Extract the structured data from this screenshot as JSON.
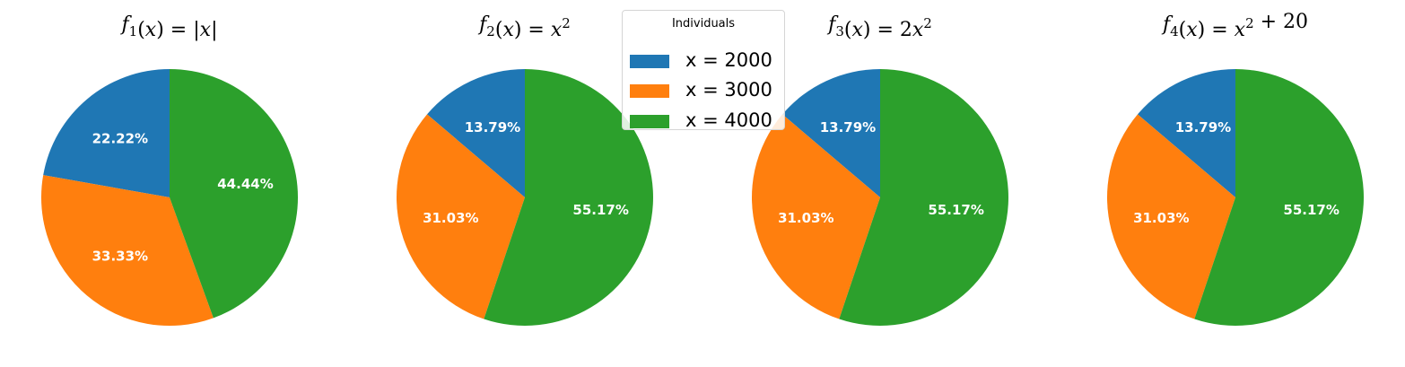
{
  "chart_data": [
    {
      "type": "pie",
      "title_parts": [
        [
          "f",
          "i"
        ],
        [
          "1",
          "sub"
        ],
        [
          "(",
          "n"
        ],
        [
          "x",
          "i"
        ],
        [
          ") = |",
          "n"
        ],
        [
          "x",
          "i"
        ],
        [
          "|",
          "n"
        ]
      ],
      "slices": [
        {
          "label": "x = 2000",
          "value": 22.22,
          "label_text": "22.22%",
          "color": "#1f77b4"
        },
        {
          "label": "x = 3000",
          "value": 33.33,
          "label_text": "33.33%",
          "color": "#ff7f0e"
        },
        {
          "label": "x = 4000",
          "value": 44.44,
          "label_text": "44.44%",
          "color": "#2ca02c"
        }
      ],
      "start_angle_deg": 90,
      "direction": "counterclockwise"
    },
    {
      "type": "pie",
      "title_parts": [
        [
          "f",
          "i"
        ],
        [
          "2",
          "sub"
        ],
        [
          "(",
          "n"
        ],
        [
          "x",
          "i"
        ],
        [
          ") = ",
          "n"
        ],
        [
          "x",
          "i"
        ],
        [
          "2",
          "sup"
        ]
      ],
      "slices": [
        {
          "label": "x = 2000",
          "value": 13.79,
          "label_text": "13.79%",
          "color": "#1f77b4"
        },
        {
          "label": "x = 3000",
          "value": 31.03,
          "label_text": "31.03%",
          "color": "#ff7f0e"
        },
        {
          "label": "x = 4000",
          "value": 55.17,
          "label_text": "55.17%",
          "color": "#2ca02c"
        }
      ],
      "start_angle_deg": 90,
      "direction": "counterclockwise"
    },
    {
      "type": "pie",
      "title_parts": [
        [
          "f",
          "i"
        ],
        [
          "3",
          "sub"
        ],
        [
          "(",
          "n"
        ],
        [
          "x",
          "i"
        ],
        [
          ") = 2",
          "n"
        ],
        [
          "x",
          "i"
        ],
        [
          "2",
          "sup"
        ]
      ],
      "slices": [
        {
          "label": "x = 2000",
          "value": 13.79,
          "label_text": "13.79%",
          "color": "#1f77b4"
        },
        {
          "label": "x = 3000",
          "value": 31.03,
          "label_text": "31.03%",
          "color": "#ff7f0e"
        },
        {
          "label": "x = 4000",
          "value": 55.17,
          "label_text": "55.17%",
          "color": "#2ca02c"
        }
      ],
      "start_angle_deg": 90,
      "direction": "counterclockwise"
    },
    {
      "type": "pie",
      "title_parts": [
        [
          "f",
          "i"
        ],
        [
          "4",
          "sub"
        ],
        [
          "(",
          "n"
        ],
        [
          "x",
          "i"
        ],
        [
          ") = ",
          "n"
        ],
        [
          "x",
          "i"
        ],
        [
          "2",
          "sup"
        ],
        [
          " + 20",
          "n"
        ]
      ],
      "slices": [
        {
          "label": "x = 2000",
          "value": 13.79,
          "label_text": "13.79%",
          "color": "#1f77b4"
        },
        {
          "label": "x = 3000",
          "value": 31.03,
          "label_text": "31.03%",
          "color": "#ff7f0e"
        },
        {
          "label": "x = 4000",
          "value": 55.17,
          "label_text": "55.17%",
          "color": "#2ca02c"
        }
      ],
      "start_angle_deg": 90,
      "direction": "counterclockwise"
    }
  ],
  "legend": {
    "title": "Individuals",
    "placement": "upper-center",
    "entries": [
      {
        "label": "x = 2000",
        "color": "#1f77b4"
      },
      {
        "label": "x = 3000",
        "color": "#ff7f0e"
      },
      {
        "label": "x = 4000",
        "color": "#2ca02c"
      }
    ]
  }
}
